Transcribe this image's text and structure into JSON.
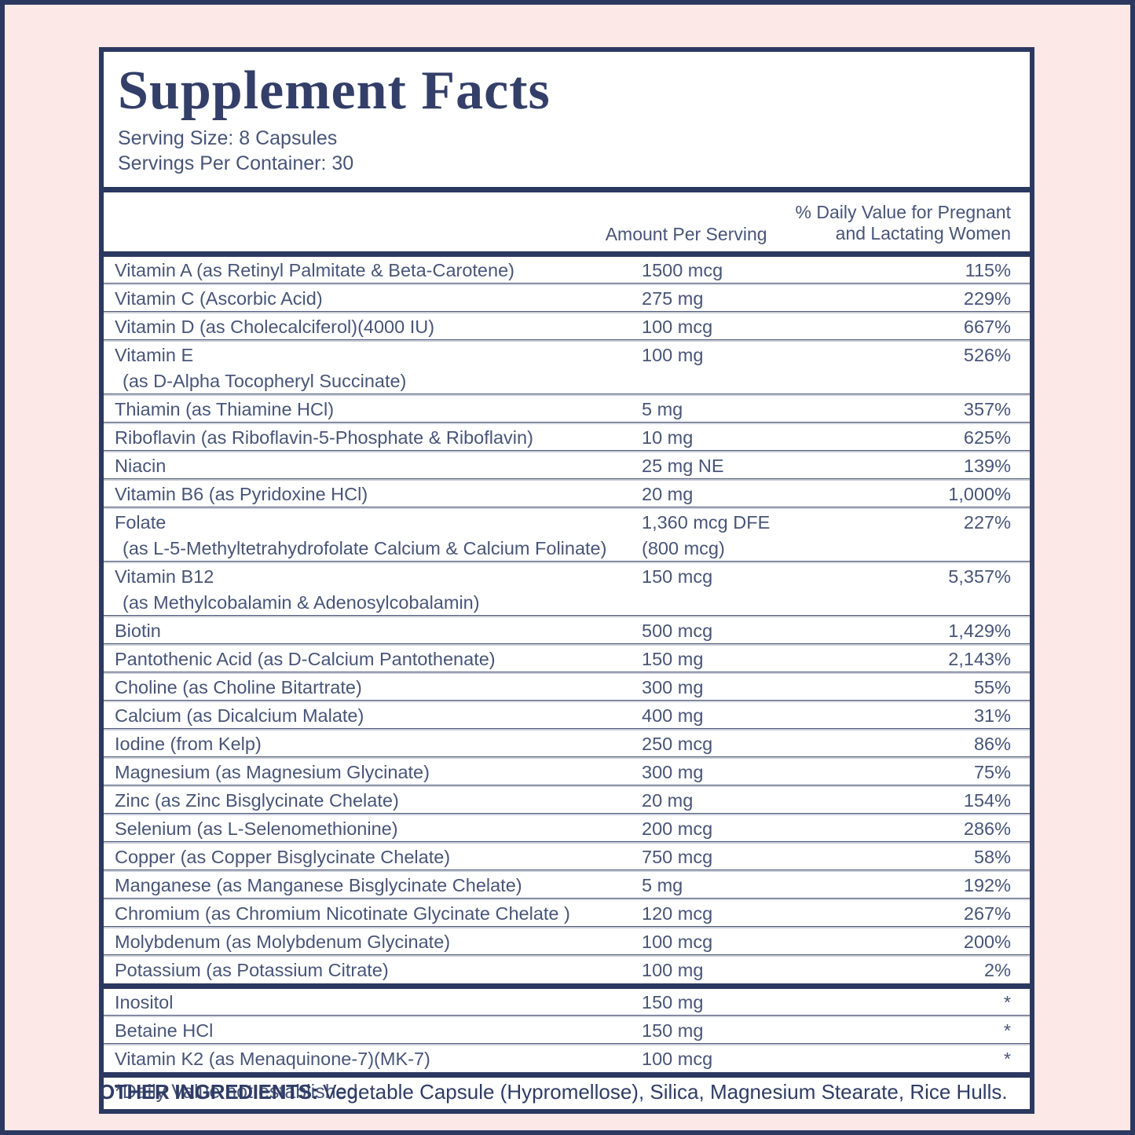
{
  "colors": {
    "background_pink": "#fce8e6",
    "frame_navy": "#2b3860",
    "title_navy": "#333f68",
    "body_text": "#485578"
  },
  "panel": {
    "title": "Supplement Facts",
    "serving_size": "Serving Size: 8 Capsules",
    "servings_per_container": "Servings Per Container: 30",
    "columns": {
      "amount": "Amount Per Serving",
      "dv_line1": "% Daily Value for Pregnant",
      "dv_line2": "and Lactating Women"
    },
    "rows": [
      {
        "name": "Vitamin A (as Retinyl Palmitate & Beta-Carotene)",
        "amount": "1500 mcg",
        "dv": "115%"
      },
      {
        "name": "Vitamin C (Ascorbic Acid)",
        "amount": "275 mg",
        "dv": "229%"
      },
      {
        "name": "Vitamin D (as Cholecalciferol)(4000 IU)",
        "amount": "100 mcg",
        "dv": "667%"
      },
      {
        "name": "Vitamin E",
        "name2": "(as D-Alpha Tocopheryl Succinate)",
        "amount": "100 mg",
        "dv": "526%"
      },
      {
        "name": "Thiamin (as Thiamine HCl)",
        "amount": "5 mg",
        "dv": "357%"
      },
      {
        "name": "Riboflavin (as Riboflavin-5-Phosphate & Riboflavin)",
        "amount": "10 mg",
        "dv": "625%"
      },
      {
        "name": "Niacin",
        "amount": "25 mg NE",
        "dv": "139%"
      },
      {
        "name": "Vitamin B6 (as Pyridoxine HCl)",
        "amount": "20 mg",
        "dv": "1,000%"
      },
      {
        "name": "Folate",
        "name2": "(as L-5-Methyltetrahydrofolate Calcium & Calcium Folinate)",
        "amount": "1,360 mcg DFE",
        "amount2": "(800 mcg)",
        "dv": "227%"
      },
      {
        "name": "Vitamin B12",
        "name2": "(as Methylcobalamin & Adenosylcobalamin)",
        "amount": "150 mcg",
        "dv": "5,357%"
      },
      {
        "name": "Biotin",
        "amount": "500 mcg",
        "dv": "1,429%"
      },
      {
        "name": "Pantothenic Acid (as D-Calcium Pantothenate)",
        "amount": "150 mg",
        "dv": "2,143%"
      },
      {
        "name": "Choline (as Choline Bitartrate)",
        "amount": "300 mg",
        "dv": "55%"
      },
      {
        "name": "Calcium (as Dicalcium Malate)",
        "amount": "400 mg",
        "dv": "31%"
      },
      {
        "name": "Iodine (from Kelp)",
        "amount": "250 mcg",
        "dv": "86%"
      },
      {
        "name": "Magnesium (as Magnesium Glycinate)",
        "amount": "300 mg",
        "dv": "75%"
      },
      {
        "name": "Zinc (as Zinc Bisglycinate Chelate)",
        "amount": "20 mg",
        "dv": "154%"
      },
      {
        "name": "Selenium (as L-Selenomethionine)",
        "amount": "200 mcg",
        "dv": "286%"
      },
      {
        "name": "Copper (as Copper Bisglycinate Chelate)",
        "amount": "750 mcg",
        "dv": "58%"
      },
      {
        "name": "Manganese (as Manganese Bisglycinate Chelate)",
        "amount": "5 mg",
        "dv": "192%"
      },
      {
        "name": "Chromium (as Chromium Nicotinate Glycinate Chelate )",
        "amount": "120 mcg",
        "dv": "267%"
      },
      {
        "name": "Molybdenum (as Molybdenum Glycinate)",
        "amount": "100 mcg",
        "dv": "200%"
      },
      {
        "name": "Potassium (as Potassium Citrate)",
        "amount": "100 mg",
        "dv": "2%"
      }
    ],
    "extra_rows": [
      {
        "name": "Inositol",
        "amount": "150 mg",
        "dv": "*"
      },
      {
        "name": "Betaine HCl",
        "amount": "150 mg",
        "dv": "*"
      },
      {
        "name": "Vitamin K2 (as Menaquinone-7)(MK-7)",
        "amount": "100 mcg",
        "dv": "*"
      }
    ],
    "footnote": "*Daily Value not established."
  },
  "footer": {
    "label": "OTHER INGREDIENTS:",
    "text": "Vegetable Capsule (Hypromellose), Silica, Magnesium Stearate, Rice Hulls."
  }
}
